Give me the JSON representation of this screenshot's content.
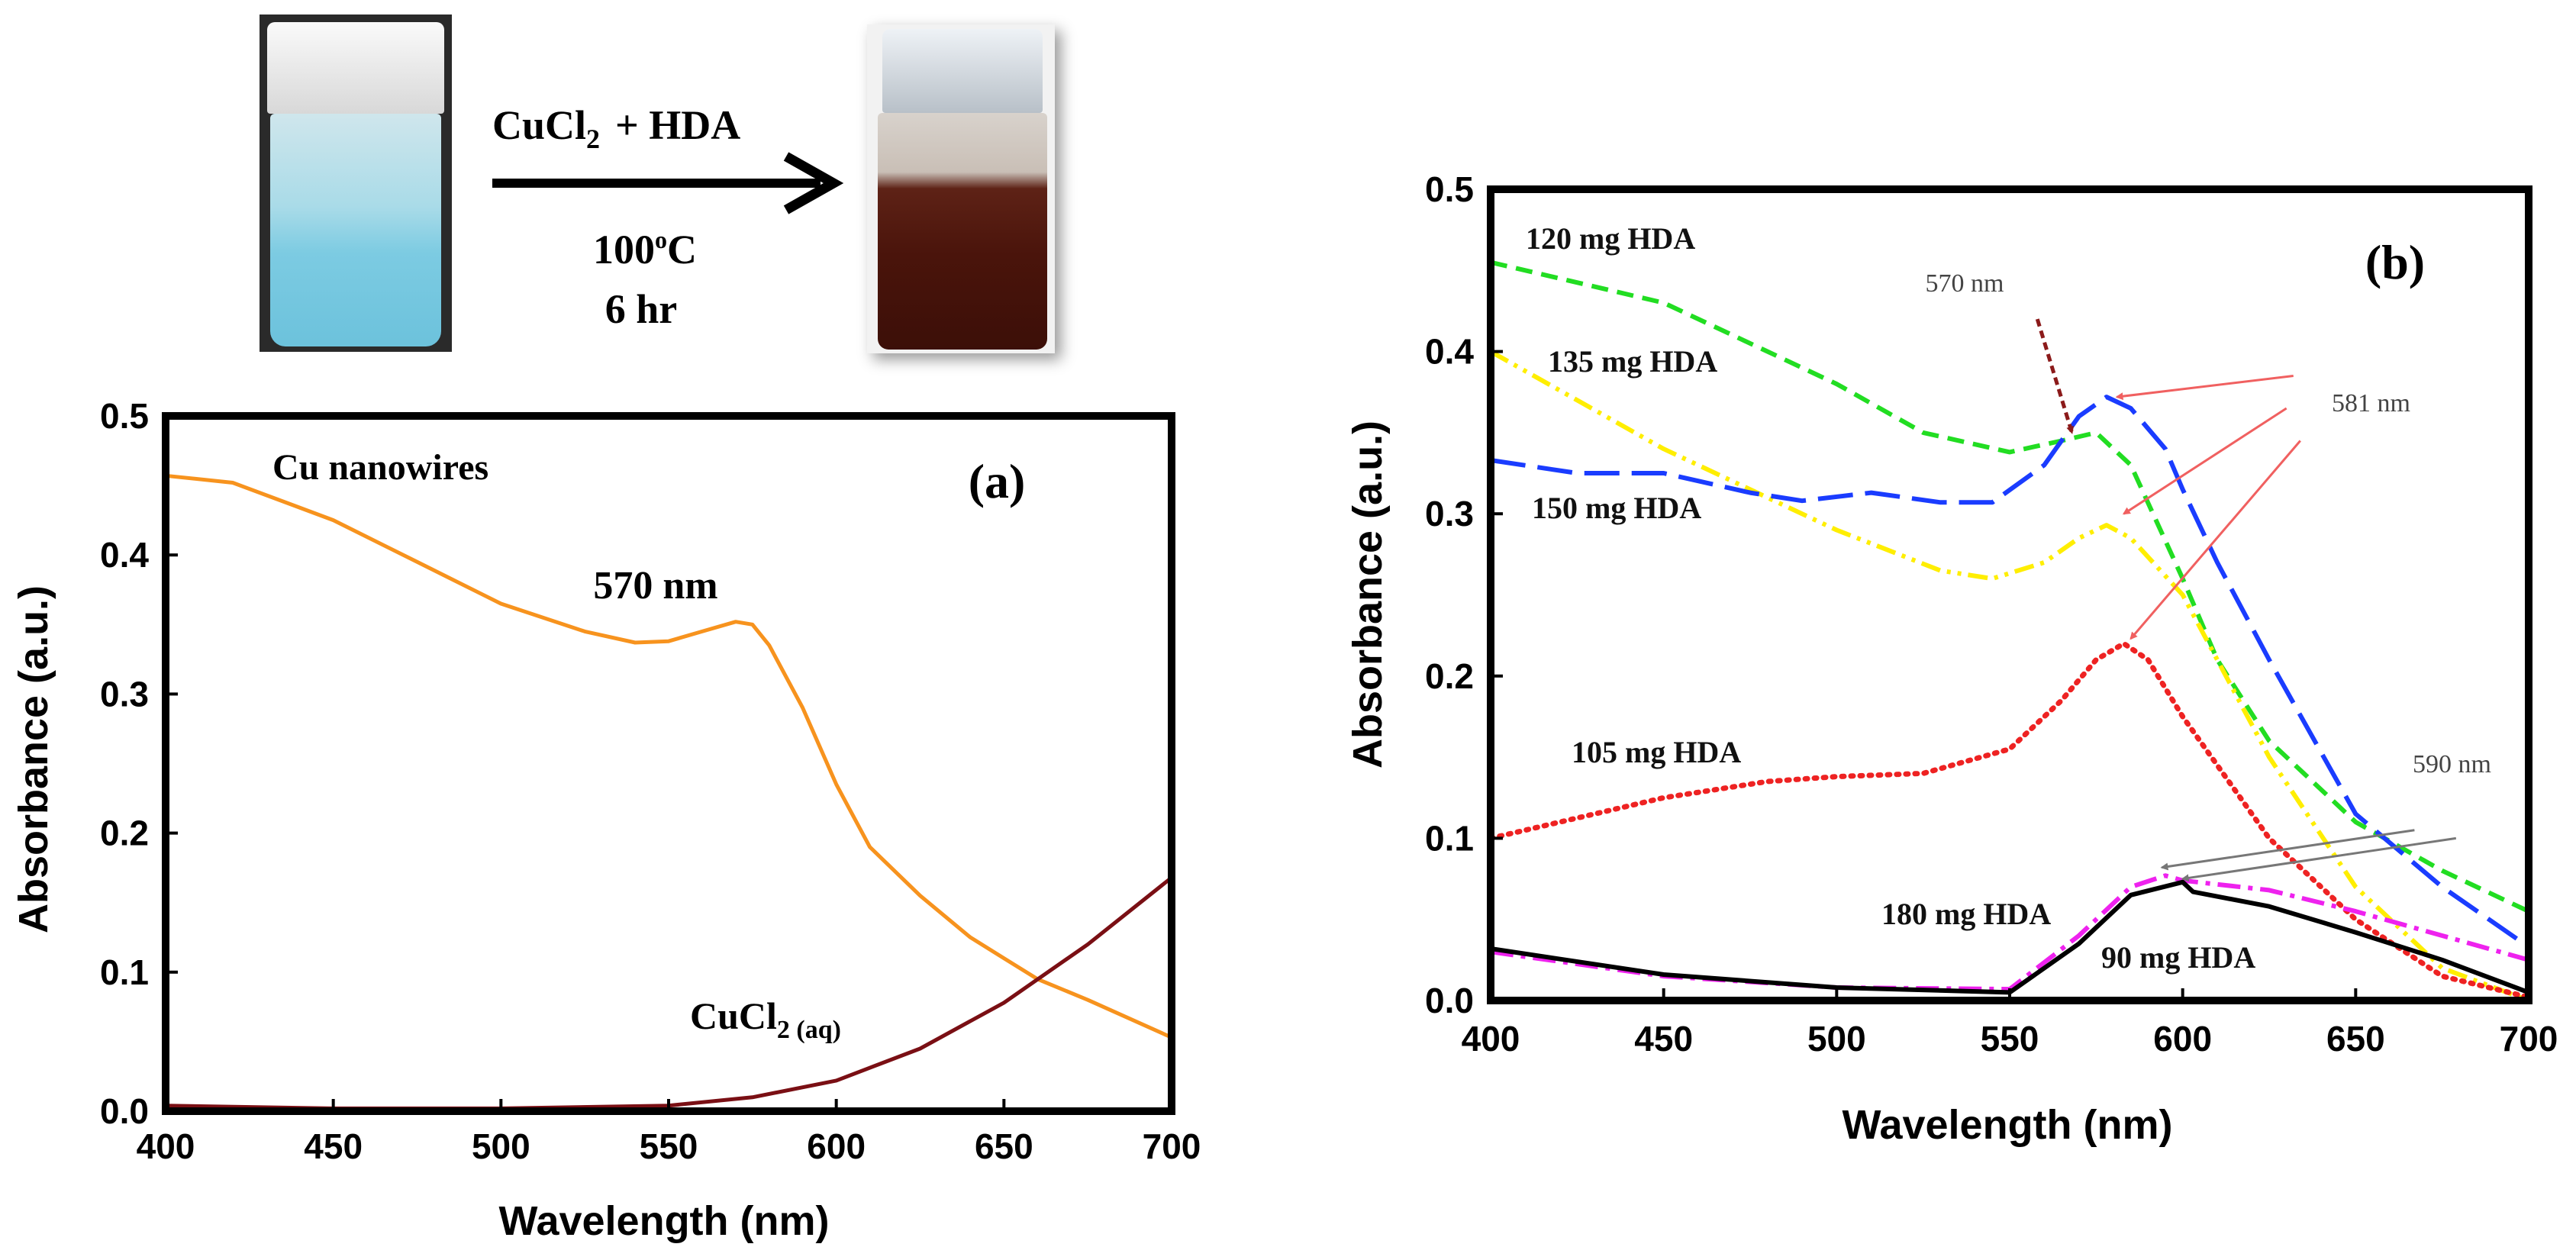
{
  "scheme": {
    "reagent": "CuCl",
    "reagent_sub": "2",
    "reagent_plus": "+ HDA",
    "temperature": "100",
    "temperature_sup": "o",
    "temperature_unit": "C",
    "time": "6 hr",
    "colors": {
      "blue_solution": "#8fd3e6",
      "brown_solution": "#5a1a10"
    }
  },
  "chart_data": [
    {
      "type": "line",
      "panel_label": "(a)",
      "xlabel": "Wavelength (nm)",
      "ylabel": "Absorbance (a.u.)",
      "xlim": [
        400,
        700
      ],
      "ylim": [
        0,
        0.5
      ],
      "xticks": [
        "400",
        "450",
        "500",
        "550",
        "600",
        "650",
        "700"
      ],
      "yticks": [
        "0.0",
        "0.1",
        "0.2",
        "0.3",
        "0.4",
        "0.5"
      ],
      "grid": false,
      "series": [
        {
          "name": "Cu nanowires",
          "color": "#f7931e",
          "style": "solid",
          "x": [
            400,
            420,
            450,
            475,
            500,
            525,
            540,
            550,
            560,
            570,
            575,
            580,
            590,
            600,
            610,
            625,
            640,
            650,
            660,
            675,
            700
          ],
          "y": [
            0.457,
            0.452,
            0.425,
            0.395,
            0.365,
            0.345,
            0.337,
            0.338,
            0.345,
            0.352,
            0.35,
            0.335,
            0.29,
            0.235,
            0.19,
            0.155,
            0.125,
            0.11,
            0.095,
            0.08,
            0.053
          ]
        },
        {
          "name": "CuCl",
          "name_sub": "2 (aq)",
          "color": "#7a0f14",
          "style": "solid",
          "x": [
            400,
            450,
            500,
            550,
            575,
            600,
            625,
            650,
            675,
            700
          ],
          "y": [
            0.004,
            0.002,
            0.002,
            0.004,
            0.01,
            0.022,
            0.045,
            0.078,
            0.12,
            0.168
          ]
        }
      ],
      "annotations": {
        "peak": "570 nm"
      }
    },
    {
      "type": "line",
      "panel_label": "(b)",
      "xlabel": "Wavelength (nm)",
      "ylabel": "Absorbance (a.u.)",
      "xlim": [
        400,
        700
      ],
      "ylim": [
        0,
        0.5
      ],
      "xticks": [
        "400",
        "450",
        "500",
        "550",
        "600",
        "650",
        "700"
      ],
      "yticks": [
        "0.0",
        "0.1",
        "0.2",
        "0.3",
        "0.4",
        "0.5"
      ],
      "grid": false,
      "series": [
        {
          "name": "120 mg HDA",
          "color": "#22dd22",
          "style": "dashed",
          "x": [
            400,
            450,
            500,
            525,
            550,
            565,
            575,
            585,
            600,
            610,
            625,
            650,
            675,
            700
          ],
          "y": [
            0.455,
            0.43,
            0.38,
            0.35,
            0.338,
            0.345,
            0.35,
            0.33,
            0.26,
            0.21,
            0.16,
            0.11,
            0.08,
            0.055
          ]
        },
        {
          "name": "135 mg HDA",
          "color": "#ffee00",
          "style": "dash-dot-dot",
          "x": [
            400,
            450,
            500,
            530,
            545,
            560,
            570,
            578,
            585,
            600,
            625,
            650,
            675,
            700
          ],
          "y": [
            0.4,
            0.34,
            0.29,
            0.265,
            0.26,
            0.27,
            0.285,
            0.293,
            0.285,
            0.25,
            0.15,
            0.07,
            0.02,
            0.0
          ]
        },
        {
          "name": "150 mg HDA",
          "color": "#1a3cff",
          "style": "long-dash",
          "x": [
            400,
            425,
            450,
            475,
            490,
            510,
            530,
            545,
            560,
            570,
            578,
            585,
            595,
            600,
            610,
            625,
            650,
            675,
            700
          ],
          "y": [
            0.333,
            0.325,
            0.325,
            0.313,
            0.308,
            0.313,
            0.307,
            0.307,
            0.33,
            0.36,
            0.372,
            0.365,
            0.34,
            0.315,
            0.27,
            0.21,
            0.115,
            0.07,
            0.033
          ]
        },
        {
          "name": "105 mg HDA",
          "color": "#ee2222",
          "style": "dotted",
          "x": [
            400,
            450,
            480,
            500,
            525,
            550,
            565,
            575,
            583,
            590,
            600,
            625,
            650,
            675,
            700
          ],
          "y": [
            0.1,
            0.125,
            0.135,
            0.138,
            0.14,
            0.155,
            0.185,
            0.21,
            0.22,
            0.21,
            0.175,
            0.1,
            0.05,
            0.015,
            0.002
          ]
        },
        {
          "name": "180 mg HDA",
          "color": "#ee22ee",
          "style": "dash-dot",
          "x": [
            400,
            450,
            500,
            550,
            570,
            585,
            595,
            600,
            625,
            650,
            675,
            700
          ],
          "y": [
            0.03,
            0.015,
            0.008,
            0.007,
            0.04,
            0.07,
            0.077,
            0.074,
            0.068,
            0.055,
            0.04,
            0.025
          ]
        },
        {
          "name": "90 mg HDA",
          "color": "#000000",
          "style": "solid",
          "x": [
            400,
            450,
            500,
            550,
            570,
            585,
            600,
            603,
            625,
            650,
            675,
            700
          ],
          "y": [
            0.032,
            0.016,
            0.008,
            0.005,
            0.035,
            0.065,
            0.073,
            0.067,
            0.058,
            0.042,
            0.025,
            0.005
          ]
        }
      ],
      "annotations": {
        "peak_570": "570 nm",
        "peak_581": "581 nm",
        "peak_590": "590 nm"
      }
    }
  ]
}
